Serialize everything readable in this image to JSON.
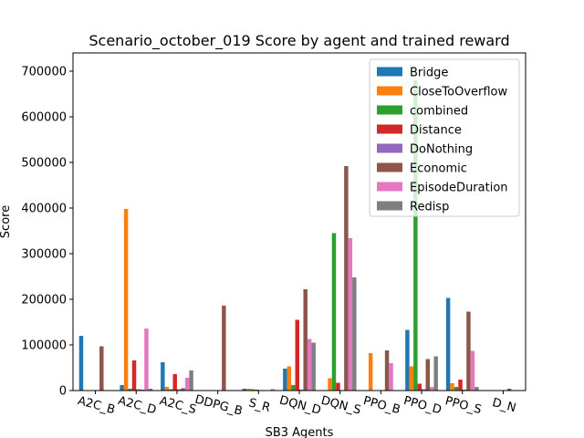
{
  "chart_data": {
    "type": "bar",
    "title": "Scenario_october_019 Score by agent and trained reward",
    "xlabel": "SB3 Agents",
    "ylabel": "Score",
    "ylim": [
      0,
      740000
    ],
    "yticks": [
      0,
      100000,
      200000,
      300000,
      400000,
      500000,
      600000,
      700000
    ],
    "ytick_labels": [
      "0",
      "100000",
      "200000",
      "300000",
      "400000",
      "500000",
      "600000",
      "700000"
    ],
    "grid": false,
    "legend_position": "top-right",
    "categories": [
      "A2C_B",
      "A2C_D",
      "A2C_S",
      "DDPG_B",
      "S_R",
      "DQN_D",
      "DQN_S",
      "PPO_B",
      "PPO_D",
      "PPO_S",
      "D_N"
    ],
    "series": [
      {
        "name": "Bridge",
        "color": "#1f77b4",
        "values": [
          120000,
          12000,
          62000,
          0,
          4000,
          48000,
          0,
          0,
          133000,
          203000,
          0
        ]
      },
      {
        "name": "CloseToOverflow",
        "color": "#ff7f0e",
        "values": [
          0,
          398000,
          8000,
          0,
          4000,
          53000,
          27000,
          82000,
          53000,
          16000,
          0
        ]
      },
      {
        "name": "combined",
        "color": "#2ca02c",
        "values": [
          0,
          4000,
          3000,
          0,
          3000,
          12000,
          345000,
          0,
          680000,
          8000,
          0
        ]
      },
      {
        "name": "Distance",
        "color": "#d62728",
        "values": [
          0,
          66000,
          36000,
          0,
          2000,
          155000,
          17000,
          0,
          15000,
          24000,
          0
        ]
      },
      {
        "name": "DoNothing",
        "color": "#9467bd",
        "values": [
          0,
          3000,
          3000,
          0,
          1000,
          2000,
          0,
          0,
          3000,
          2000,
          0
        ]
      },
      {
        "name": "Economic",
        "color": "#8c564b",
        "values": [
          97000,
          2000,
          5000,
          186000,
          1000,
          222000,
          492000,
          88000,
          69000,
          173000,
          4000
        ]
      },
      {
        "name": "EpisodeDuration",
        "color": "#e377c2",
        "values": [
          0,
          136000,
          28000,
          0,
          1000,
          113000,
          334000,
          60000,
          8000,
          87000,
          0
        ]
      },
      {
        "name": "Redisp",
        "color": "#7f7f7f",
        "values": [
          0,
          4000,
          44000,
          0,
          3000,
          105000,
          248000,
          0,
          75000,
          8000,
          0
        ]
      }
    ]
  }
}
